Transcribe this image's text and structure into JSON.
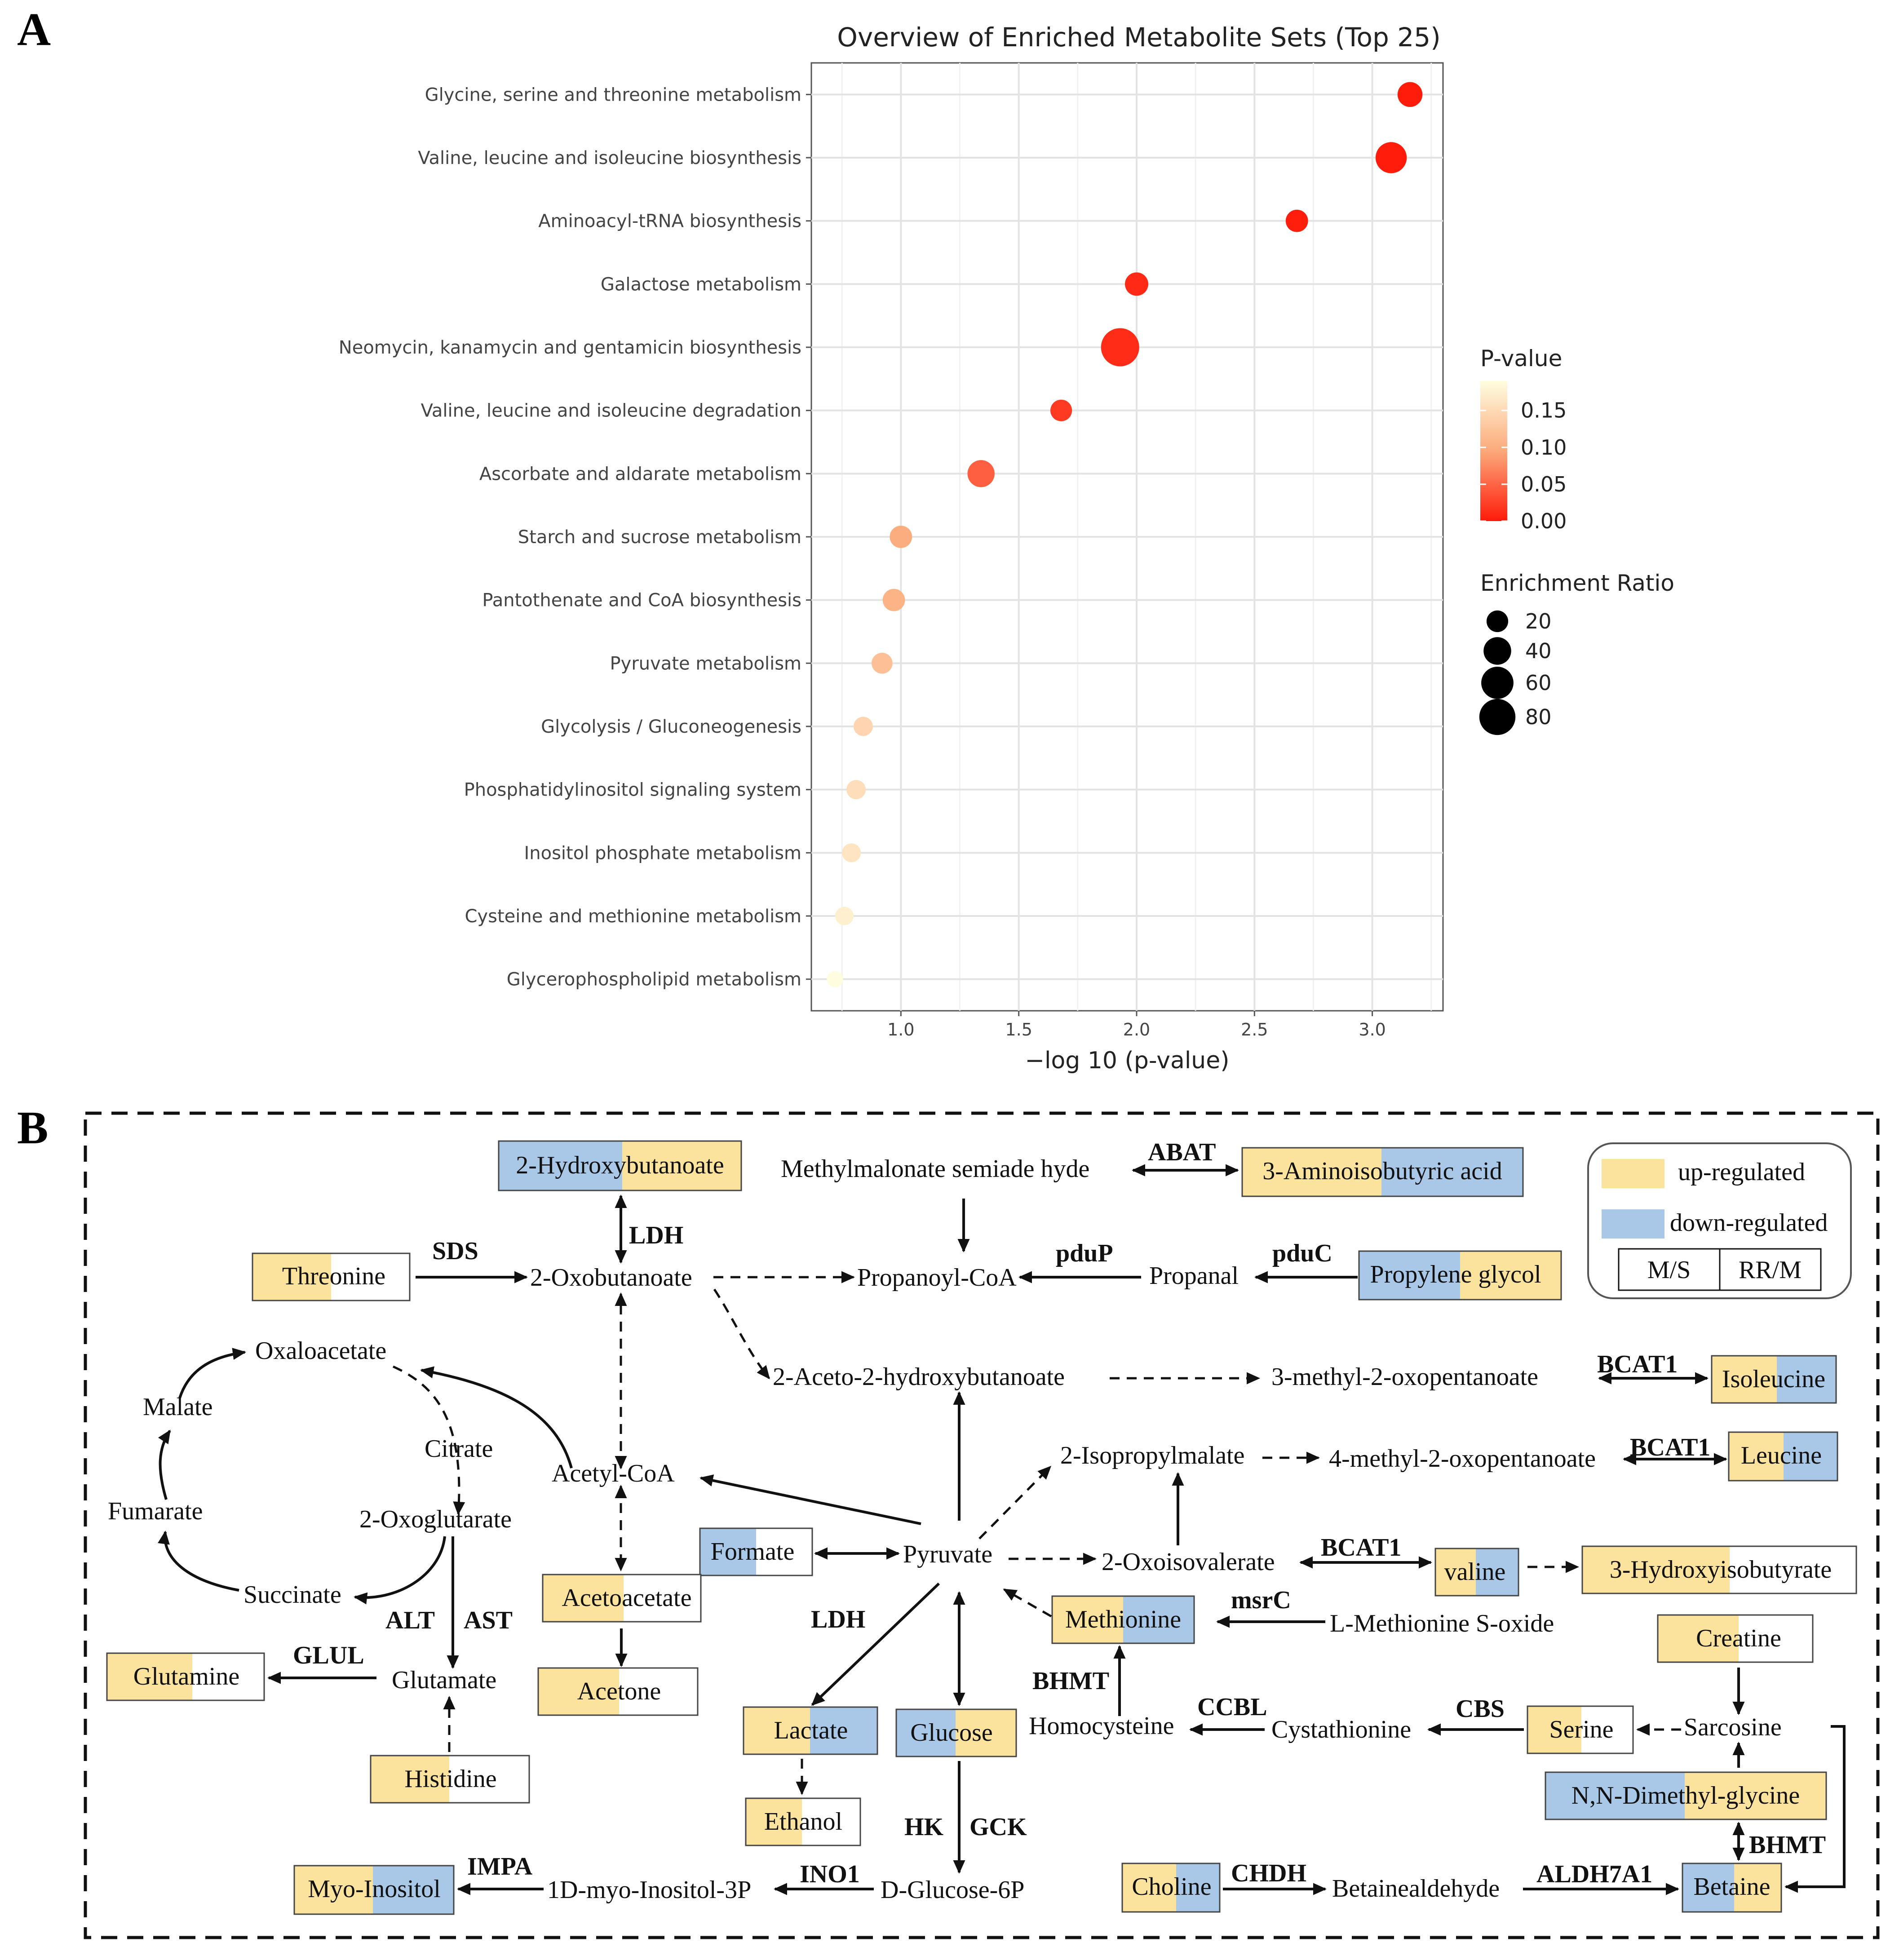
{
  "panels": {
    "a": "A",
    "b": "B"
  },
  "colors": {
    "up": "#fbe39d",
    "down": "#a9c8e8",
    "grid": "#e6e6e6",
    "low_p": "#ff1a0a",
    "high_p": "#fffde0"
  },
  "chart_data": {
    "type": "scatter",
    "title": "Overview of Enriched Metabolite Sets (Top 25)",
    "xlabel": "−log 10 (p-value)",
    "ylabel": "",
    "xlim": [
      0.62,
      3.3
    ],
    "xticks": [
      "1.0",
      "1.5",
      "2.0",
      "2.5",
      "3.0"
    ],
    "xtick_values": [
      1.0,
      1.5,
      2.0,
      2.5,
      3.0
    ],
    "grid": true,
    "points": [
      {
        "name": "Glycine, serine and threonine metabolism",
        "x": 3.16,
        "p": 0.001,
        "ratio": 30
      },
      {
        "name": "Valine, leucine and isoleucine biosynthesis",
        "x": 3.08,
        "p": 0.001,
        "ratio": 55
      },
      {
        "name": "Aminoacyl-tRNA biosynthesis",
        "x": 2.68,
        "p": 0.002,
        "ratio": 22
      },
      {
        "name": "Galactose metabolism",
        "x": 2.0,
        "p": 0.01,
        "ratio": 25
      },
      {
        "name": "Neomycin, kanamycin and gentamicin biosynthesis",
        "x": 1.93,
        "p": 0.012,
        "ratio": 92
      },
      {
        "name": "Valine, leucine and isoleucine degradation",
        "x": 1.68,
        "p": 0.021,
        "ratio": 20
      },
      {
        "name": "Ascorbate and aldarate metabolism",
        "x": 1.34,
        "p": 0.046,
        "ratio": 38
      },
      {
        "name": "Starch and sucrose metabolism",
        "x": 1.0,
        "p": 0.1,
        "ratio": 22
      },
      {
        "name": "Pantothenate and CoA biosynthesis",
        "x": 0.97,
        "p": 0.107,
        "ratio": 22
      },
      {
        "name": "Pyruvate metabolism",
        "x": 0.92,
        "p": 0.12,
        "ratio": 18
      },
      {
        "name": "Glycolysis / Gluconeogenesis",
        "x": 0.84,
        "p": 0.145,
        "ratio": 14
      },
      {
        "name": "Phosphatidylinositol signaling system",
        "x": 0.81,
        "p": 0.155,
        "ratio": 14
      },
      {
        "name": "Inositol phosphate metabolism",
        "x": 0.79,
        "p": 0.162,
        "ratio": 13
      },
      {
        "name": "Cysteine and methionine metabolism",
        "x": 0.76,
        "p": 0.174,
        "ratio": 12
      },
      {
        "name": "Glycerophospholipid metabolism",
        "x": 0.72,
        "p": 0.19,
        "ratio": 8
      }
    ],
    "legend_pvalue": {
      "title": "P-value",
      "labels": [
        "0.15",
        "0.10",
        "0.05",
        "0.00"
      ],
      "values": [
        0.15,
        0.1,
        0.05,
        0.0
      ],
      "range": [
        0,
        0.19
      ]
    },
    "legend_ratio": {
      "title": "Enrichment Ratio",
      "labels": [
        "20",
        "40",
        "60",
        "80"
      ],
      "values": [
        20,
        40,
        60,
        80
      ]
    }
  },
  "pathway": {
    "legend": {
      "up": "up-regulated",
      "down": "down-regulated",
      "left": "M/S",
      "right": "RR/M"
    },
    "boxes": {
      "hydroxybutanoate": [
        "2-Hydroxy",
        "butanoate"
      ],
      "aminoisobutyric": [
        "3-Aminoiso",
        "butyric acid"
      ],
      "threonine": [
        "Threo",
        "nine"
      ],
      "propylene": [
        "Propylene",
        " glycol"
      ],
      "isoleucine": [
        "Isoleu",
        "cine"
      ],
      "leucine": [
        "Leu",
        "cine"
      ],
      "formate": [
        "Form",
        "ate"
      ],
      "acetoacetate": [
        "Acetoace",
        "tate"
      ],
      "acetone": [
        "Ace",
        "tone"
      ],
      "valine": [
        "val",
        "ine"
      ],
      "hydroxyisobutyrate": [
        "3-Hydroxy",
        "isobutyrate"
      ],
      "methionine": [
        "Methi",
        "onine"
      ],
      "creatine": [
        "Crea",
        "tine"
      ],
      "glutamine": [
        "Gluta",
        "mine"
      ],
      "histidine": [
        "Histi",
        "dine"
      ],
      "lactate": [
        "Lac",
        "tate"
      ],
      "glucose": [
        "Gluc",
        "ose"
      ],
      "serine": [
        "Ser",
        "ine"
      ],
      "dimethylglycine": [
        "N,N-Dimethyl",
        "-glycine"
      ],
      "ethanol": [
        "Eth",
        "anol"
      ],
      "myoinositol": [
        "Myo-",
        "Inositol"
      ],
      "choline": [
        "Cho",
        "line"
      ],
      "betaine": [
        "Beta",
        "ine"
      ]
    },
    "metabolites": {
      "methylmalonate": "Methylmalonate semiade hyde",
      "oxobutanoate": "2-Oxobutanoate",
      "propanoylcoa": "Propanoyl-CoA",
      "propanal": "Propanal",
      "oxaloacetate": "Oxaloacetate",
      "malate": "Malate",
      "aceto": "2-Aceto-2-hydroxybutanoate",
      "methyloxopentanoate3": "3-methyl-2-oxopentanoate",
      "citrate": "Citrate",
      "acetylcoa": "Acetyl-CoA",
      "isopropylmalate": "2-Isopropylmalate",
      "methyloxopentanoate4": "4-methyl-2-oxopentanoate",
      "fumarate": "Fumarate",
      "oxoglutarate": "2-Oxoglutarate",
      "pyruvate": "Pyruvate",
      "oxoisovalerate": "2-Oxoisovalerate",
      "succinate": "Succinate",
      "glutamate": "Glutamate",
      "methioninesoxide": "L-Methionine S-oxide",
      "homocysteine": "Homocysteine",
      "cystathionine": "Cystathionine",
      "sarcosine": "Sarcosine",
      "inositol3p": "1D-myo-Inositol-3P",
      "glucose6p": "D-Glucose-6P",
      "betainealdehyde": "Betainealdehyde"
    },
    "enzymes": {
      "abat": "ABAT",
      "ldh1": "LDH",
      "sds": "SDS",
      "pdup": "pduP",
      "pduc": "pduC",
      "bcat1a": "BCAT1",
      "bcat1b": "BCAT1",
      "bcat1c": "BCAT1",
      "msrc": "msrC",
      "ldh2": "LDH",
      "alt": "ALT",
      "ast": "AST",
      "glul": "GLUL",
      "bhmt1": "BHMT",
      "ccbl": "CCBL",
      "cbs": "CBS",
      "hk": "HK",
      "gck": "GCK",
      "bhmt2": "BHMT",
      "impa": "IMPA",
      "ino1": "INO1",
      "chdh": "CHDH",
      "aldh7a1": "ALDH7A1"
    }
  }
}
